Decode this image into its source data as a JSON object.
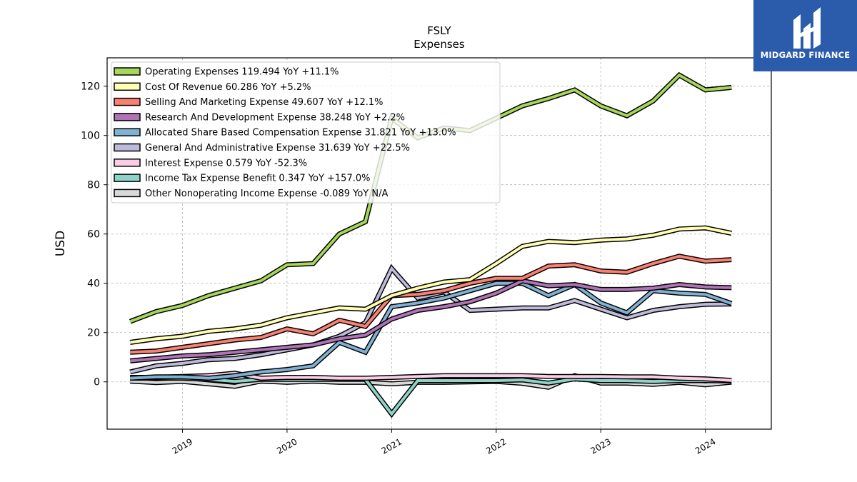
{
  "logo": {
    "text": "MIDGARD FINANCE",
    "icon": "midgard-logo-icon",
    "bg_color": "#2b5bab"
  },
  "chart_data": {
    "type": "line",
    "title": "FSLY",
    "subtitle": "Expenses",
    "xlabel": "",
    "ylabel": "USD",
    "xlim": [
      2018.28,
      2024.63
    ],
    "ylim": [
      -19.2,
      131.5
    ],
    "x_ticks": [
      2019,
      2020,
      2021,
      2022,
      2023,
      2024
    ],
    "y_ticks": [
      0,
      20,
      40,
      60,
      80,
      100,
      120
    ],
    "grid": true,
    "legend_position": "top-left",
    "x": [
      2018.5,
      2018.75,
      2019.0,
      2019.25,
      2019.5,
      2019.75,
      2020.0,
      2020.25,
      2020.5,
      2020.75,
      2021.0,
      2021.25,
      2021.5,
      2021.75,
      2022.0,
      2022.25,
      2022.5,
      2022.75,
      2023.0,
      2023.25,
      2023.5,
      2023.75,
      2024.0,
      2024.25
    ],
    "series": [
      {
        "name": "Operating Expenses",
        "legend": "Operating Expenses  119.494 YoY +11.1%",
        "color": "#a6d75b",
        "values": [
          24.5,
          28.5,
          31,
          35,
          38,
          41,
          47.5,
          48,
          60,
          65,
          107,
          99,
          103,
          102,
          107,
          112,
          115,
          118.5,
          112,
          108,
          114,
          124.5,
          118.5,
          119.5
        ]
      },
      {
        "name": "Cost Of Revenue",
        "legend": "Cost Of Revenue  60.286 YoY +5.2%",
        "color": "#ffffb3",
        "values": [
          16,
          17.5,
          18.5,
          20.5,
          21.5,
          23,
          26,
          28,
          30,
          29.5,
          35,
          38,
          40.5,
          41.5,
          48,
          55,
          57,
          56.5,
          57.5,
          58,
          59.5,
          62,
          62.5,
          60.3
        ]
      },
      {
        "name": "Selling And Marketing Expense",
        "legend": "Selling And Marketing Expense  49.607 YoY +12.1%",
        "color": "#fb8072",
        "values": [
          12,
          12.5,
          14,
          15.5,
          17,
          18,
          21.5,
          19.5,
          25,
          22.5,
          35,
          35.5,
          37,
          40,
          42,
          42,
          47,
          47.5,
          45,
          44.5,
          48,
          51,
          49,
          49.6
        ]
      },
      {
        "name": "Research And Development Expense",
        "legend": "Research And Development Expense  38.248 YoY +2.2%",
        "color": "#b073b6",
        "values": [
          8.5,
          9.5,
          10.5,
          11,
          12,
          13,
          14,
          15,
          17.5,
          19,
          25.5,
          29,
          30.5,
          32.5,
          36,
          41,
          39,
          39.5,
          37.5,
          37.5,
          38,
          39.5,
          38.5,
          38.2
        ]
      },
      {
        "name": "Allocated Share Based Compensation Expense",
        "legend": "Allocated Share Based Compensation Expense  31.821 YoY +13.0%",
        "color": "#80b1d3",
        "values": [
          1.5,
          2,
          2,
          1.5,
          2.5,
          4,
          5,
          6.5,
          16,
          12,
          30.5,
          32,
          34,
          37,
          40,
          40,
          35,
          39.5,
          32,
          28,
          37,
          36,
          35.5,
          31.8
        ]
      },
      {
        "name": "General And Administrative Expense",
        "legend": "General And Administrative Expense  31.639 YoY +22.5%",
        "color": "#bebada",
        "values": [
          4,
          6.5,
          7.5,
          9,
          9.5,
          11,
          13,
          15,
          18.5,
          24,
          46,
          34,
          36.5,
          29,
          29.5,
          30,
          30,
          33,
          29.5,
          26,
          29,
          30.5,
          31.5,
          31.6
        ]
      },
      {
        "name": "Interest Expense",
        "legend": "Interest Expense  0.579 YoY -52.3%",
        "color": "#fccde5",
        "values": [
          1.8,
          1.8,
          2.2,
          2.5,
          3.5,
          1.5,
          1.8,
          1.8,
          1.5,
          1.5,
          1.8,
          2.2,
          2.5,
          2.5,
          2.5,
          2.5,
          2.2,
          2.2,
          2.2,
          2.0,
          2.0,
          1.5,
          1.2,
          0.58
        ]
      },
      {
        "name": "Income Tax Expense Benefit",
        "legend": "Income Tax Expense Benefit  0.347 YoY +157.0%",
        "color": "#8dd3c7",
        "values": [
          1.5,
          1.5,
          1.5,
          1.0,
          0.2,
          1.0,
          1.0,
          1.0,
          1.0,
          1.0,
          -13,
          0.5,
          0.5,
          0.5,
          0.5,
          0.8,
          -0.5,
          1.2,
          0.5,
          0.5,
          0.2,
          0.5,
          0.5,
          0.35
        ]
      },
      {
        "name": "Other Nonoperating Income Expense",
        "legend": "Other Nonoperating Income Expense  -0.089 YoY N/A",
        "color": "#d9d9d9",
        "values": [
          0.3,
          -0.3,
          0.2,
          -0.8,
          -1.8,
          0.3,
          -0.2,
          0.3,
          -0.2,
          -0.2,
          -0.8,
          -0.2,
          -0.2,
          0,
          0.2,
          -0.6,
          -2.2,
          2.5,
          -0.5,
          -0.5,
          -1.0,
          -0.2,
          -1.2,
          -0.09
        ]
      }
    ]
  }
}
